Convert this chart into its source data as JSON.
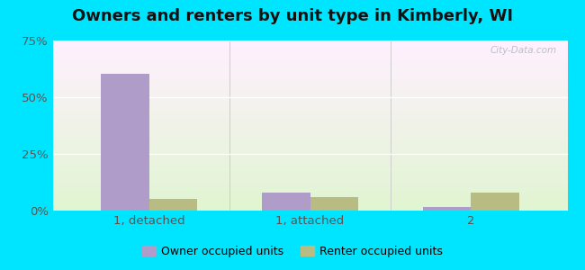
{
  "title": "Owners and renters by unit type in Kimberly, WI",
  "categories": [
    "1, detached",
    "1, attached",
    "2"
  ],
  "owner_values": [
    60.5,
    8.0,
    1.5
  ],
  "renter_values": [
    5.0,
    6.0,
    8.0
  ],
  "owner_color": "#b09cc8",
  "renter_color": "#b8bc82",
  "ylim": [
    0,
    75
  ],
  "yticks": [
    0,
    25,
    50,
    75
  ],
  "ytick_labels": [
    "0%",
    "25%",
    "50%",
    "75%"
  ],
  "legend_owner": "Owner occupied units",
  "legend_renter": "Renter occupied units",
  "bar_width": 0.3,
  "outer_background": "#00e5ff",
  "title_fontsize": 13,
  "tick_fontsize": 9.5,
  "watermark": "City-Data.com"
}
